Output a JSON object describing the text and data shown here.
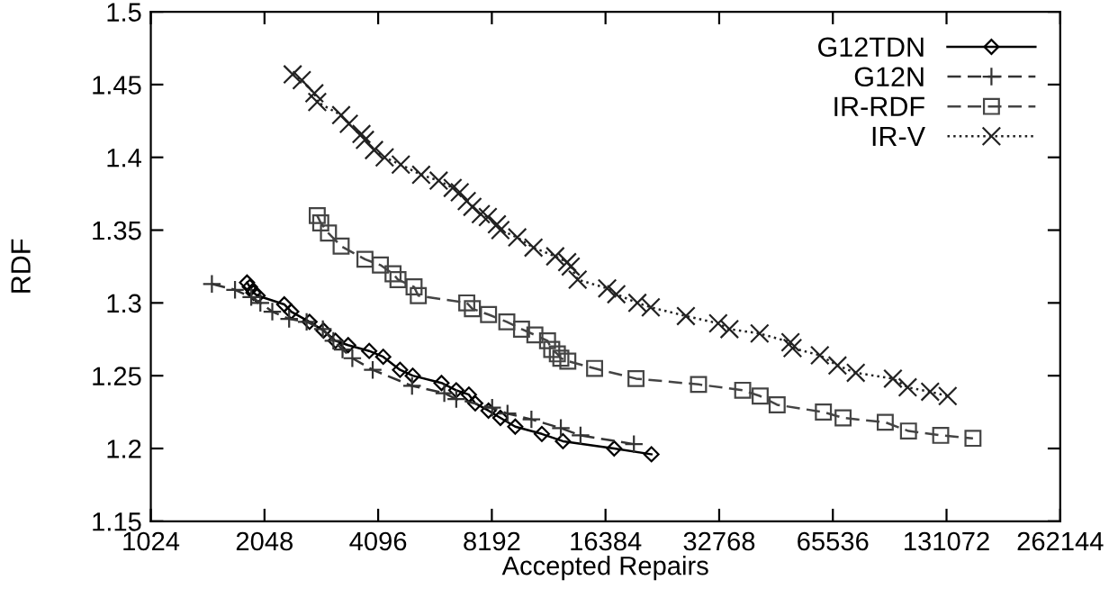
{
  "chart_data": {
    "type": "line",
    "xlabel": "Accepted Repairs",
    "ylabel": "RDF",
    "log": "x",
    "grid": false,
    "legend": "top right",
    "xlim": [
      1024,
      262144
    ],
    "xticks": [
      1024,
      2048,
      4096,
      8192,
      16384,
      32768,
      65536,
      131072,
      262144
    ],
    "ylim": [
      1.15,
      1.5
    ],
    "yticks": [
      1.15,
      1.2,
      1.25,
      1.3,
      1.35,
      1.4,
      1.45,
      1.5
    ],
    "series": [
      {
        "name": "G12TDN",
        "color": "#000000",
        "marker": "diamond",
        "line_style": "solid",
        "x": [
          1841,
          1873,
          1914,
          1963,
          2310,
          2411,
          2695,
          2935,
          3157,
          3411,
          3878,
          4224,
          4681,
          5057,
          6027,
          6594,
          7122,
          7403,
          8028,
          8631,
          9450,
          11112,
          12640,
          17280,
          21680
        ],
        "values": [
          1.314,
          1.311,
          1.307,
          1.305,
          1.299,
          1.294,
          1.287,
          1.281,
          1.274,
          1.271,
          1.267,
          1.263,
          1.254,
          1.25,
          1.245,
          1.24,
          1.237,
          1.231,
          1.226,
          1.221,
          1.215,
          1.21,
          1.205,
          1.2,
          1.196
        ]
      },
      {
        "name": "G12N",
        "color": "#333333",
        "marker": "plus",
        "line_style": "dashed",
        "x": [
          1486,
          1711,
          1889,
          1997,
          2148,
          2380,
          2648,
          2923,
          3117,
          3296,
          3499,
          3962,
          5036,
          6131,
          6594,
          8208,
          9013,
          10428,
          12478,
          14066,
          19480
        ],
        "values": [
          1.313,
          1.309,
          1.304,
          1.3,
          1.294,
          1.289,
          1.287,
          1.282,
          1.274,
          1.268,
          1.262,
          1.254,
          1.243,
          1.238,
          1.234,
          1.228,
          1.224,
          1.22,
          1.214,
          1.209,
          1.203
        ]
      },
      {
        "name": "IR-RDF",
        "color": "#444444",
        "marker": "square",
        "line_style": "dashed",
        "x": [
          2825,
          2886,
          3025,
          3268,
          3779,
          4152,
          4485,
          4622,
          5098,
          5232,
          7030,
          7276,
          8028,
          8976,
          9818,
          10650,
          11505,
          11804,
          12214,
          12478,
          13020,
          15329,
          19730,
          28890,
          37820,
          42070,
          46660,
          61860,
          69750,
          90200,
          103930,
          126500,
          154000
        ],
        "values": [
          1.36,
          1.355,
          1.348,
          1.339,
          1.33,
          1.326,
          1.32,
          1.316,
          1.311,
          1.305,
          1.3,
          1.296,
          1.292,
          1.287,
          1.282,
          1.278,
          1.274,
          1.268,
          1.265,
          1.262,
          1.26,
          1.255,
          1.248,
          1.244,
          1.24,
          1.236,
          1.23,
          1.225,
          1.221,
          1.218,
          1.212,
          1.209,
          1.207
        ]
      },
      {
        "name": "IR-V",
        "color": "#222222",
        "marker": "cross",
        "line_style": "dotted",
        "x": [
          2432,
          2571,
          2776,
          2825,
          3268,
          3425,
          3699,
          3779,
          3994,
          4261,
          4702,
          5323,
          5924,
          6452,
          6736,
          7030,
          7276,
          7660,
          7995,
          8449,
          8631,
          9567,
          10560,
          12059,
          12970,
          13253,
          13826,
          16555,
          17501,
          19897,
          21590,
          26745,
          32564,
          34875,
          41920,
          50606,
          51252,
          60539,
          67412,
          75370,
          94530,
          103430,
          118600,
          132000
        ],
        "values": [
          1.457,
          1.453,
          1.444,
          1.438,
          1.429,
          1.423,
          1.416,
          1.412,
          1.405,
          1.4,
          1.395,
          1.388,
          1.384,
          1.379,
          1.376,
          1.37,
          1.366,
          1.361,
          1.359,
          1.354,
          1.35,
          1.345,
          1.338,
          1.332,
          1.328,
          1.325,
          1.316,
          1.31,
          1.306,
          1.3,
          1.297,
          1.291,
          1.286,
          1.282,
          1.279,
          1.273,
          1.269,
          1.264,
          1.257,
          1.252,
          1.248,
          1.242,
          1.239,
          1.236
        ]
      }
    ]
  }
}
